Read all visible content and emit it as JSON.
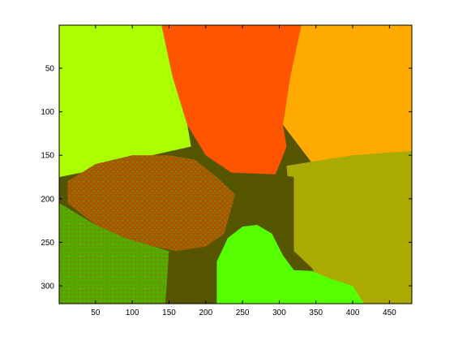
{
  "chart_data": {
    "type": "heatmap",
    "title": "",
    "xlabel": "",
    "ylabel": "",
    "xlim": [
      0.5,
      480.5
    ],
    "ylim": [
      0.5,
      320.5
    ],
    "y_direction": "reversed",
    "grid": false,
    "legend": "none",
    "x_ticks": [
      50,
      100,
      150,
      200,
      250,
      300,
      350,
      400,
      450
    ],
    "y_ticks": [
      50,
      100,
      150,
      200,
      250,
      300
    ],
    "colors": {
      "lime": "#aaff00",
      "red_orange": "#ff5500",
      "orange": "#ffaa00",
      "olive_gold": "#aaaa00",
      "dark_olive": "#555500",
      "rust": "#aa5500",
      "mid_green": "#55aa00",
      "bright_green": "#55ff00"
    },
    "regions": [
      {
        "label": "lime",
        "polygon": [
          [
            1,
            1
          ],
          [
            140,
            1
          ],
          [
            155,
            60
          ],
          [
            175,
            115
          ],
          [
            180,
            140
          ],
          [
            100,
            155
          ],
          [
            60,
            165
          ],
          [
            1,
            175
          ]
        ]
      },
      {
        "label": "red_orange",
        "polygon": [
          [
            140,
            1
          ],
          [
            330,
            1
          ],
          [
            315,
            60
          ],
          [
            305,
            115
          ],
          [
            310,
            140
          ],
          [
            295,
            172
          ],
          [
            235,
            170
          ],
          [
            200,
            150
          ],
          [
            175,
            115
          ],
          [
            155,
            60
          ]
        ]
      },
      {
        "label": "orange",
        "polygon": [
          [
            330,
            1
          ],
          [
            480,
            1
          ],
          [
            480,
            145
          ],
          [
            410,
            155
          ],
          [
            350,
            165
          ],
          [
            305,
            115
          ],
          [
            315,
            60
          ]
        ]
      },
      {
        "label": "olive_gold",
        "polygon": [
          [
            310,
            162
          ],
          [
            400,
            150
          ],
          [
            480,
            145
          ],
          [
            480,
            320
          ],
          [
            370,
            320
          ],
          [
            345,
            280
          ],
          [
            320,
            260
          ]
        ]
      },
      {
        "label": "dark_olive",
        "polygon": [
          [
            195,
            150
          ],
          [
            235,
            170
          ],
          [
            295,
            172
          ],
          [
            320,
            175
          ],
          [
            320,
            260
          ],
          [
            270,
            250
          ],
          [
            240,
            258
          ],
          [
            215,
            272
          ],
          [
            185,
            275
          ],
          [
            150,
            280
          ],
          [
            145,
            320
          ],
          [
            95,
            320
          ],
          [
            100,
            240
          ]
        ]
      },
      {
        "label": "rust",
        "polygon": [
          [
            12,
            180
          ],
          [
            50,
            160
          ],
          [
            100,
            150
          ],
          [
            150,
            150
          ],
          [
            185,
            155
          ],
          [
            215,
            175
          ],
          [
            240,
            195
          ],
          [
            225,
            240
          ],
          [
            200,
            255
          ],
          [
            160,
            260
          ],
          [
            130,
            255
          ],
          [
            90,
            245
          ],
          [
            50,
            230
          ],
          [
            12,
            205
          ]
        ]
      },
      {
        "label": "mid_green",
        "polygon": [
          [
            1,
            205
          ],
          [
            50,
            230
          ],
          [
            90,
            245
          ],
          [
            130,
            255
          ],
          [
            150,
            260
          ],
          [
            145,
            320
          ],
          [
            1,
            320
          ]
        ]
      },
      {
        "label": "bright_green",
        "polygon": [
          [
            215,
            272
          ],
          [
            230,
            245
          ],
          [
            250,
            232
          ],
          [
            270,
            230
          ],
          [
            290,
            240
          ],
          [
            305,
            265
          ],
          [
            320,
            282
          ],
          [
            345,
            283
          ],
          [
            370,
            292
          ],
          [
            400,
            300
          ],
          [
            415,
            320
          ],
          [
            215,
            320
          ]
        ]
      }
    ]
  }
}
